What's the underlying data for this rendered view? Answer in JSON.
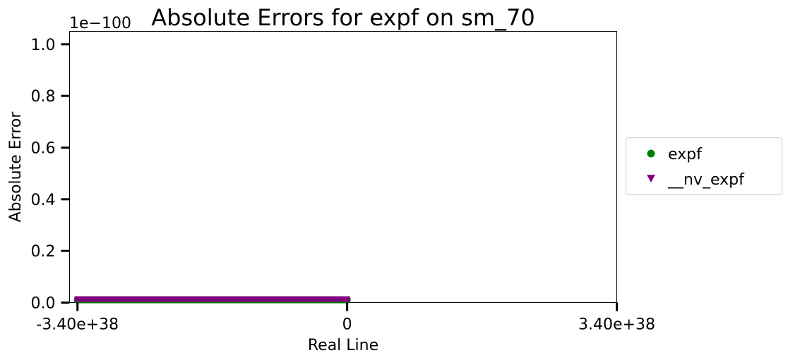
{
  "chart_data": {
    "type": "scatter",
    "title": "Absolute Errors for expf on sm_70",
    "xlabel": "Real Line",
    "ylabel": "Absolute Error",
    "y_offset_text": "1e−100",
    "xlim": [
      -3.5e+38,
      3.4e+38
    ],
    "ylim": [
      0,
      1.05
    ],
    "x_ticks": [
      {
        "value": -3.4e+38,
        "label": "-3.40e+38"
      },
      {
        "value": 0,
        "label": "0"
      },
      {
        "value": 3.4e+38,
        "label": "3.40e+38"
      }
    ],
    "y_ticks": [
      {
        "value": 0.0,
        "label": "0.0"
      },
      {
        "value": 0.2,
        "label": "0.2"
      },
      {
        "value": 0.4,
        "label": "0.4"
      },
      {
        "value": 0.6,
        "label": "0.6"
      },
      {
        "value": 0.8,
        "label": "0.8"
      },
      {
        "value": 1.0,
        "label": "1.0"
      }
    ],
    "grid": false,
    "legend_position": "right, outside plot",
    "series": [
      {
        "name": "expf",
        "marker": "circle",
        "color": "#008000",
        "x_range": [
          -3.4e+38,
          0
        ],
        "y": 0
      },
      {
        "name": "__nv_expf",
        "marker": "triangle-down",
        "color": "#800080",
        "x_range": [
          -3.4e+38,
          0
        ],
        "y": 0
      }
    ]
  }
}
